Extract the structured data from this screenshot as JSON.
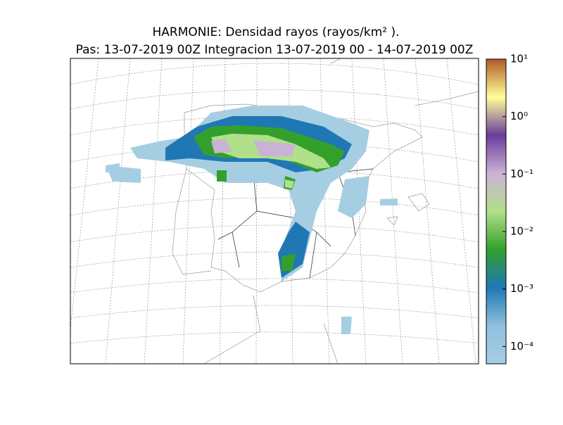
{
  "title": "HARMONIE: Densidad rayos  (rayos/km² ).",
  "subtitle": "Pas: 13-07-2019 00Z Integracion 13-07-2019 00 - 14-07-2019 00Z",
  "colorbar": {
    "log": true,
    "lim": [
      5e-05,
      10
    ],
    "colors": [
      "#a6cee3",
      "#8fc0de",
      "#1f78b4",
      "#33a02c",
      "#b2df8a",
      "#cab2d6",
      "#6a3d9a",
      "#ffff99",
      "#b15928"
    ],
    "ticks": [
      {
        "value": 0.0001,
        "label": "10⁻⁴"
      },
      {
        "value": 0.001,
        "label": "10⁻³"
      },
      {
        "value": 0.01,
        "label": "10⁻²"
      },
      {
        "value": 0.1,
        "label": "10⁻¹"
      },
      {
        "value": 1,
        "label": "10⁰"
      },
      {
        "value": 10,
        "label": "10¹"
      }
    ]
  }
}
